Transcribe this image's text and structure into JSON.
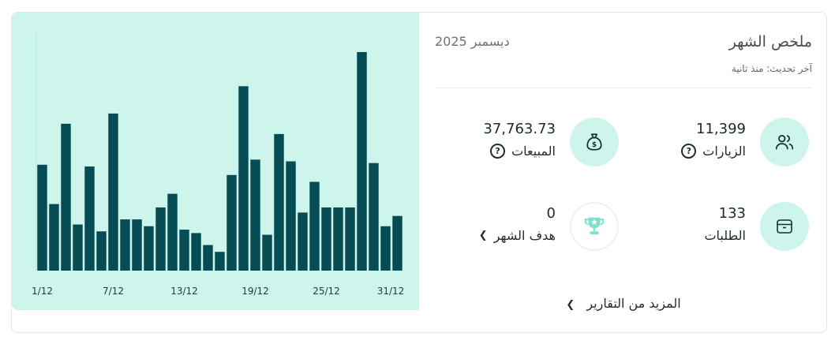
{
  "summary": {
    "title": "ملخص الشهر",
    "date": "ديسمبر 2025",
    "updated": "آخر تحديث: منذ ثانية",
    "stats": {
      "visits": {
        "value": "11,399",
        "label": "الزيارات",
        "icon": "users-icon"
      },
      "sales": {
        "value": "37,763.73",
        "label": "المبيعات",
        "icon": "money-bag-icon"
      },
      "orders": {
        "value": "133",
        "label": "الطلبات",
        "icon": "box-icon"
      },
      "goal": {
        "value": "0",
        "label": "هدف الشهر",
        "icon": "trophy-icon",
        "progress": 0
      }
    },
    "more_link": "المزيد من التقارير"
  },
  "colors": {
    "accent_bg": "#cdf5ec",
    "bar": "#064c55",
    "trophy": "#7fe0cd"
  },
  "chart_data": {
    "type": "bar",
    "tick_labels": [
      "1/12",
      "7/12",
      "13/12",
      "19/12",
      "25/12",
      "31/12"
    ],
    "tick_positions": [
      1,
      7,
      13,
      19,
      25,
      31
    ],
    "x": [
      1,
      2,
      3,
      4,
      5,
      6,
      7,
      8,
      9,
      10,
      11,
      12,
      13,
      14,
      15,
      16,
      17,
      18,
      19,
      20,
      21,
      22,
      23,
      24,
      25,
      26,
      27,
      28,
      29,
      30,
      31
    ],
    "values": [
      31,
      19.5,
      43,
      13.5,
      30.5,
      11.5,
      46,
      15,
      15,
      13,
      18.5,
      22.5,
      12,
      11,
      7.5,
      5.5,
      28,
      54,
      32.5,
      10.5,
      40,
      32,
      17,
      26,
      18.5,
      18.5,
      18.5,
      64,
      31.5,
      13,
      16
    ],
    "ylim": [
      0,
      70
    ],
    "grid": false
  }
}
